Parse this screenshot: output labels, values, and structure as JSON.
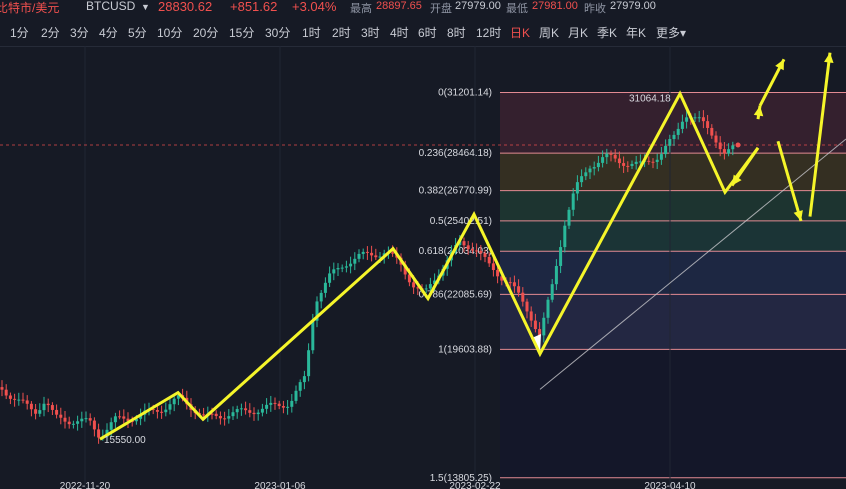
{
  "header": {
    "title": "比特市/美元",
    "symbol": "BTCUSD",
    "price": "28830.62",
    "change": "+851.62",
    "change_pct": "+3.04%",
    "high_label": "最高",
    "high_value": "28897.65",
    "open_label": "开盘",
    "open_value": "27979.00",
    "low_label": "最低",
    "low_value": "27981.00",
    "prev_label": "昨收",
    "prev_value": "27979.00",
    "colors": {
      "up": "#f0504e",
      "label": "#8e94a3",
      "value": "#c9ccd4"
    }
  },
  "timeframes": [
    "1分",
    "2分",
    "3分",
    "4分",
    "5分",
    "10分",
    "20分",
    "15分",
    "30分",
    "1时",
    "2时",
    "3时",
    "4时",
    "6时",
    "8时",
    "12时",
    "日K",
    "周K",
    "月K",
    "季K",
    "年K",
    "更多"
  ],
  "active_timeframe": "日K",
  "chart_data": {
    "type": "candlestick",
    "x_ticks": [
      "2022-11-20",
      "2023-01-06",
      "2023-02-22",
      "2023-04-10"
    ],
    "annotations": {
      "low": "15550.00",
      "high": "31064.18"
    },
    "fib_levels": [
      {
        "ratio": "0",
        "price": "31201.14",
        "label": "0(31201.14)"
      },
      {
        "ratio": "0.236",
        "price": "28464.18",
        "label": "0.236(28464.18)"
      },
      {
        "ratio": "0.382",
        "price": "26770.99",
        "label": "0.382(26770.99)"
      },
      {
        "ratio": "0.5",
        "price": "25402.51",
        "label": "0.5(25402.51)"
      },
      {
        "ratio": "0.618",
        "price": "24034.03",
        "label": "0.618(24034.03)"
      },
      {
        "ratio": "0.786",
        "price": "22085.69",
        "label": "0.786(22085.69)"
      },
      {
        "ratio": "1",
        "price": "19603.88",
        "label": "1(19603.88)"
      },
      {
        "ratio": "1.5",
        "price": "13805.25",
        "label": "1.5(13805.25)"
      }
    ],
    "fib_zone_colors": [
      "#3a2230",
      "#3a3422",
      "#1f3a32",
      "#1c3a3a",
      "#1f2a48",
      "#262a48",
      "#14182a",
      "#3a3c44"
    ],
    "price_range": [
      13300,
      33300
    ],
    "colors": {
      "up": "#2ab89a",
      "down": "#f0504e",
      "wave": "#f5f52a",
      "drop": "#ffffff"
    }
  }
}
